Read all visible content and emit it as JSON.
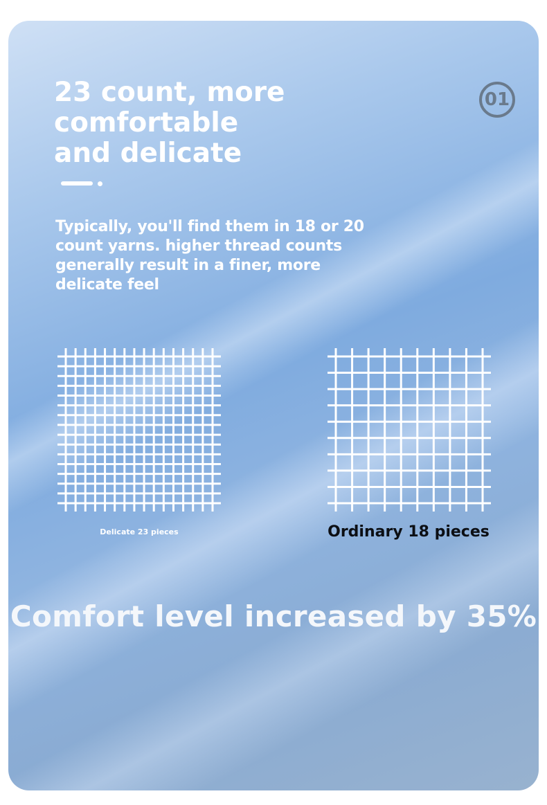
{
  "title_lines": [
    "23 count, more",
    "comfortable",
    "and delicate"
  ],
  "badge": "01",
  "description": "Typically, you'll find them in 18 or 20 count yarns. higher thread counts generally result in a finer, more delicate feel",
  "comparison": [
    {
      "caption": "Delicate 23 pieces",
      "grid_lines": 16
    },
    {
      "caption": "Ordinary 18 pieces",
      "grid_lines": 10
    }
  ],
  "headline": "Comfort level increased by 35%",
  "colors": {
    "background": "#7fabdf",
    "text": "#ffffff",
    "badge": "#6a7a8c"
  }
}
